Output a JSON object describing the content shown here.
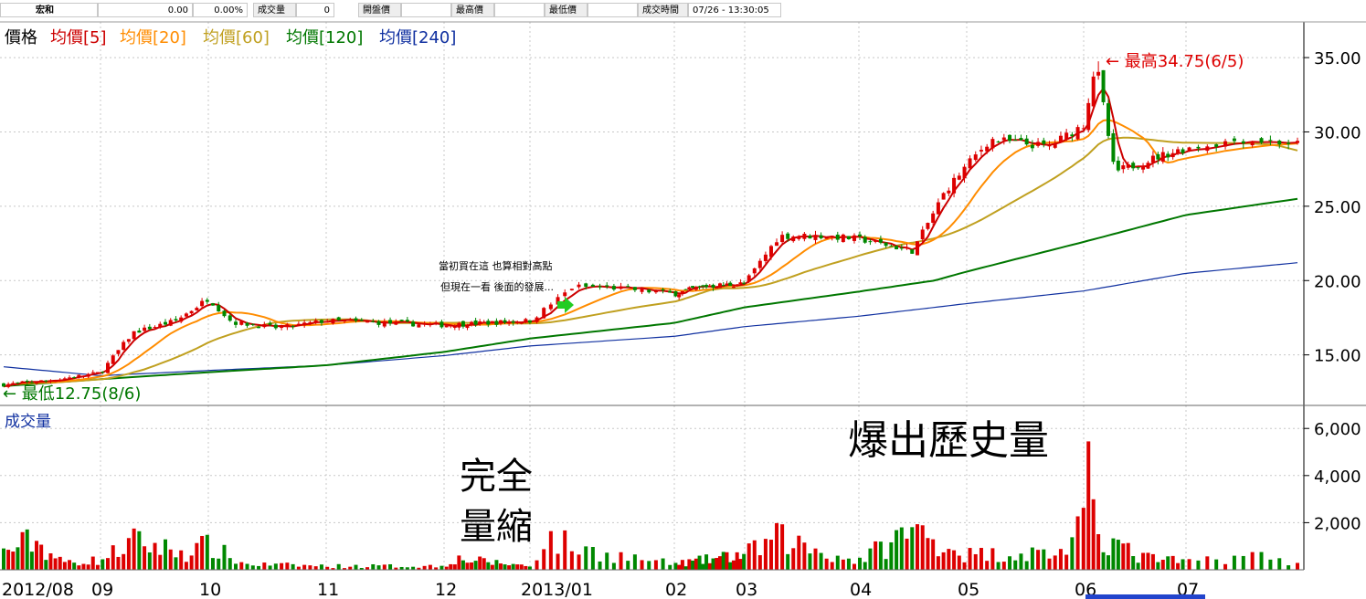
{
  "quote": {
    "name": "宏和",
    "price": "0.00",
    "change_pct": "0.00%",
    "volume_label": "成交量",
    "volume_value": "0",
    "open_label": "開盤價",
    "high_label": "最高價",
    "low_label": "最低價",
    "time_label": "成交時間",
    "time_value": "07/26 - 13:30:05"
  },
  "legend": {
    "price": "價格",
    "ma5": "均價[5]",
    "ma20": "均價[20]",
    "ma60": "均價[60]",
    "ma120": "均價[120]",
    "ma240": "均價[240]"
  },
  "colors": {
    "up": "#dd0000",
    "down": "#008800",
    "ma5": "#cc0000",
    "ma20": "#ff8c00",
    "ma60": "#c0a020",
    "ma120": "#007700",
    "ma240": "#1030a0",
    "grid": "#c8c8c8",
    "volume_label": "#1030a0",
    "legend_price": "#000000"
  },
  "annotations": {
    "high": "← 最高34.75(6/5)",
    "low": "← 最低12.75(8/6)",
    "note_line1": "當初買在這 也算相對高點",
    "note_line2": "但現在一看 後面的發展...",
    "volume_shrink_line1": "完全",
    "volume_shrink_line2": "量縮",
    "volume_burst": "爆出歷史量"
  },
  "volume_panel": {
    "title": "成交量"
  },
  "chart_data": {
    "type": "candlestick",
    "title": "",
    "x_months": [
      "2012/08",
      "09",
      "10",
      "11",
      "12",
      "2013/01",
      "02",
      "03",
      "04",
      "05",
      "06",
      "07"
    ],
    "price_axis": {
      "ticks": [
        15,
        20,
        25,
        30,
        35
      ],
      "labels": [
        "15.00",
        "20.00",
        "25.00",
        "30.00",
        "35.00"
      ],
      "range": [
        11.6,
        37.4
      ]
    },
    "volume_axis": {
      "ticks": [
        2000,
        4000,
        6000
      ],
      "labels": [
        "2,000",
        "4,000",
        "6,000"
      ],
      "range": [
        0,
        6900
      ]
    },
    "high": {
      "value": 34.75,
      "date": "6/5"
    },
    "low": {
      "value": 12.75,
      "date": "8/6"
    },
    "price_keypoints": [
      {
        "month": 0.0,
        "close": 13.0
      },
      {
        "month": 0.5,
        "close": 13.3
      },
      {
        "month": 1.0,
        "close": 13.8
      },
      {
        "month": 1.3,
        "close": 16.5
      },
      {
        "month": 1.7,
        "close": 17.3
      },
      {
        "month": 2.0,
        "close": 18.8
      },
      {
        "month": 2.2,
        "close": 17.2
      },
      {
        "month": 2.6,
        "close": 16.8
      },
      {
        "month": 3.0,
        "close": 17.3
      },
      {
        "month": 4.0,
        "close": 17.0
      },
      {
        "month": 5.0,
        "close": 17.3
      },
      {
        "month": 5.3,
        "close": 19.6
      },
      {
        "month": 5.6,
        "close": 19.5
      },
      {
        "month": 6.0,
        "close": 19.1
      },
      {
        "month": 6.4,
        "close": 19.6
      },
      {
        "month": 7.0,
        "close": 19.8
      },
      {
        "month": 7.3,
        "close": 23.0
      },
      {
        "month": 7.7,
        "close": 23.0
      },
      {
        "month": 8.0,
        "close": 22.8
      },
      {
        "month": 8.5,
        "close": 22.0
      },
      {
        "month": 8.8,
        "close": 26.0
      },
      {
        "month": 9.2,
        "close": 29.5
      },
      {
        "month": 9.7,
        "close": 29.0
      },
      {
        "month": 10.0,
        "close": 30.5
      },
      {
        "month": 10.12,
        "close": 34.75
      },
      {
        "month": 10.3,
        "close": 27.3
      },
      {
        "month": 10.8,
        "close": 28.5
      },
      {
        "month": 11.3,
        "close": 29.5
      },
      {
        "month": 11.6,
        "close": 29.2
      }
    ],
    "ma120_keypoints": [
      {
        "month": 0.0,
        "value": 12.9
      },
      {
        "month": 3.0,
        "value": 14.3
      },
      {
        "month": 5.0,
        "value": 16.1
      },
      {
        "month": 7.0,
        "value": 18.2
      },
      {
        "month": 8.7,
        "value": 20.0
      },
      {
        "month": 10.0,
        "value": 22.6
      },
      {
        "month": 11.6,
        "value": 25.5
      }
    ],
    "ma240_keypoints": [
      {
        "month": 0.0,
        "value": 14.2
      },
      {
        "month": 1.0,
        "value": 13.6
      },
      {
        "month": 3.0,
        "value": 14.3
      },
      {
        "month": 5.0,
        "value": 15.6
      },
      {
        "month": 7.0,
        "value": 16.9
      },
      {
        "month": 8.0,
        "value": 17.6
      },
      {
        "month": 10.0,
        "value": 19.3
      },
      {
        "month": 11.6,
        "value": 21.2
      }
    ],
    "volume_keypoints": [
      {
        "month": 0.0,
        "value": 900
      },
      {
        "month": 0.3,
        "value": 1600
      },
      {
        "month": 0.6,
        "value": 400
      },
      {
        "month": 1.0,
        "value": 500
      },
      {
        "month": 1.3,
        "value": 1500
      },
      {
        "month": 1.8,
        "value": 900
      },
      {
        "month": 2.0,
        "value": 1300
      },
      {
        "month": 2.3,
        "value": 300
      },
      {
        "month": 3.0,
        "value": 200
      },
      {
        "month": 4.0,
        "value": 200
      },
      {
        "month": 4.1,
        "value": 600
      },
      {
        "month": 5.0,
        "value": 200
      },
      {
        "month": 5.1,
        "value": 1700
      },
      {
        "month": 5.4,
        "value": 1000
      },
      {
        "month": 6.0,
        "value": 300
      },
      {
        "month": 7.0,
        "value": 800
      },
      {
        "month": 7.3,
        "value": 1700
      },
      {
        "month": 7.8,
        "value": 700
      },
      {
        "month": 8.0,
        "value": 500
      },
      {
        "month": 8.5,
        "value": 2100
      },
      {
        "month": 9.0,
        "value": 800
      },
      {
        "month": 9.8,
        "value": 900
      },
      {
        "month": 10.0,
        "value": 2200
      },
      {
        "month": 10.07,
        "value": 5450
      },
      {
        "month": 10.15,
        "value": 2050
      },
      {
        "month": 10.5,
        "value": 700
      },
      {
        "month": 11.0,
        "value": 400
      },
      {
        "month": 11.3,
        "value": 800
      },
      {
        "month": 11.6,
        "value": 400
      }
    ]
  }
}
